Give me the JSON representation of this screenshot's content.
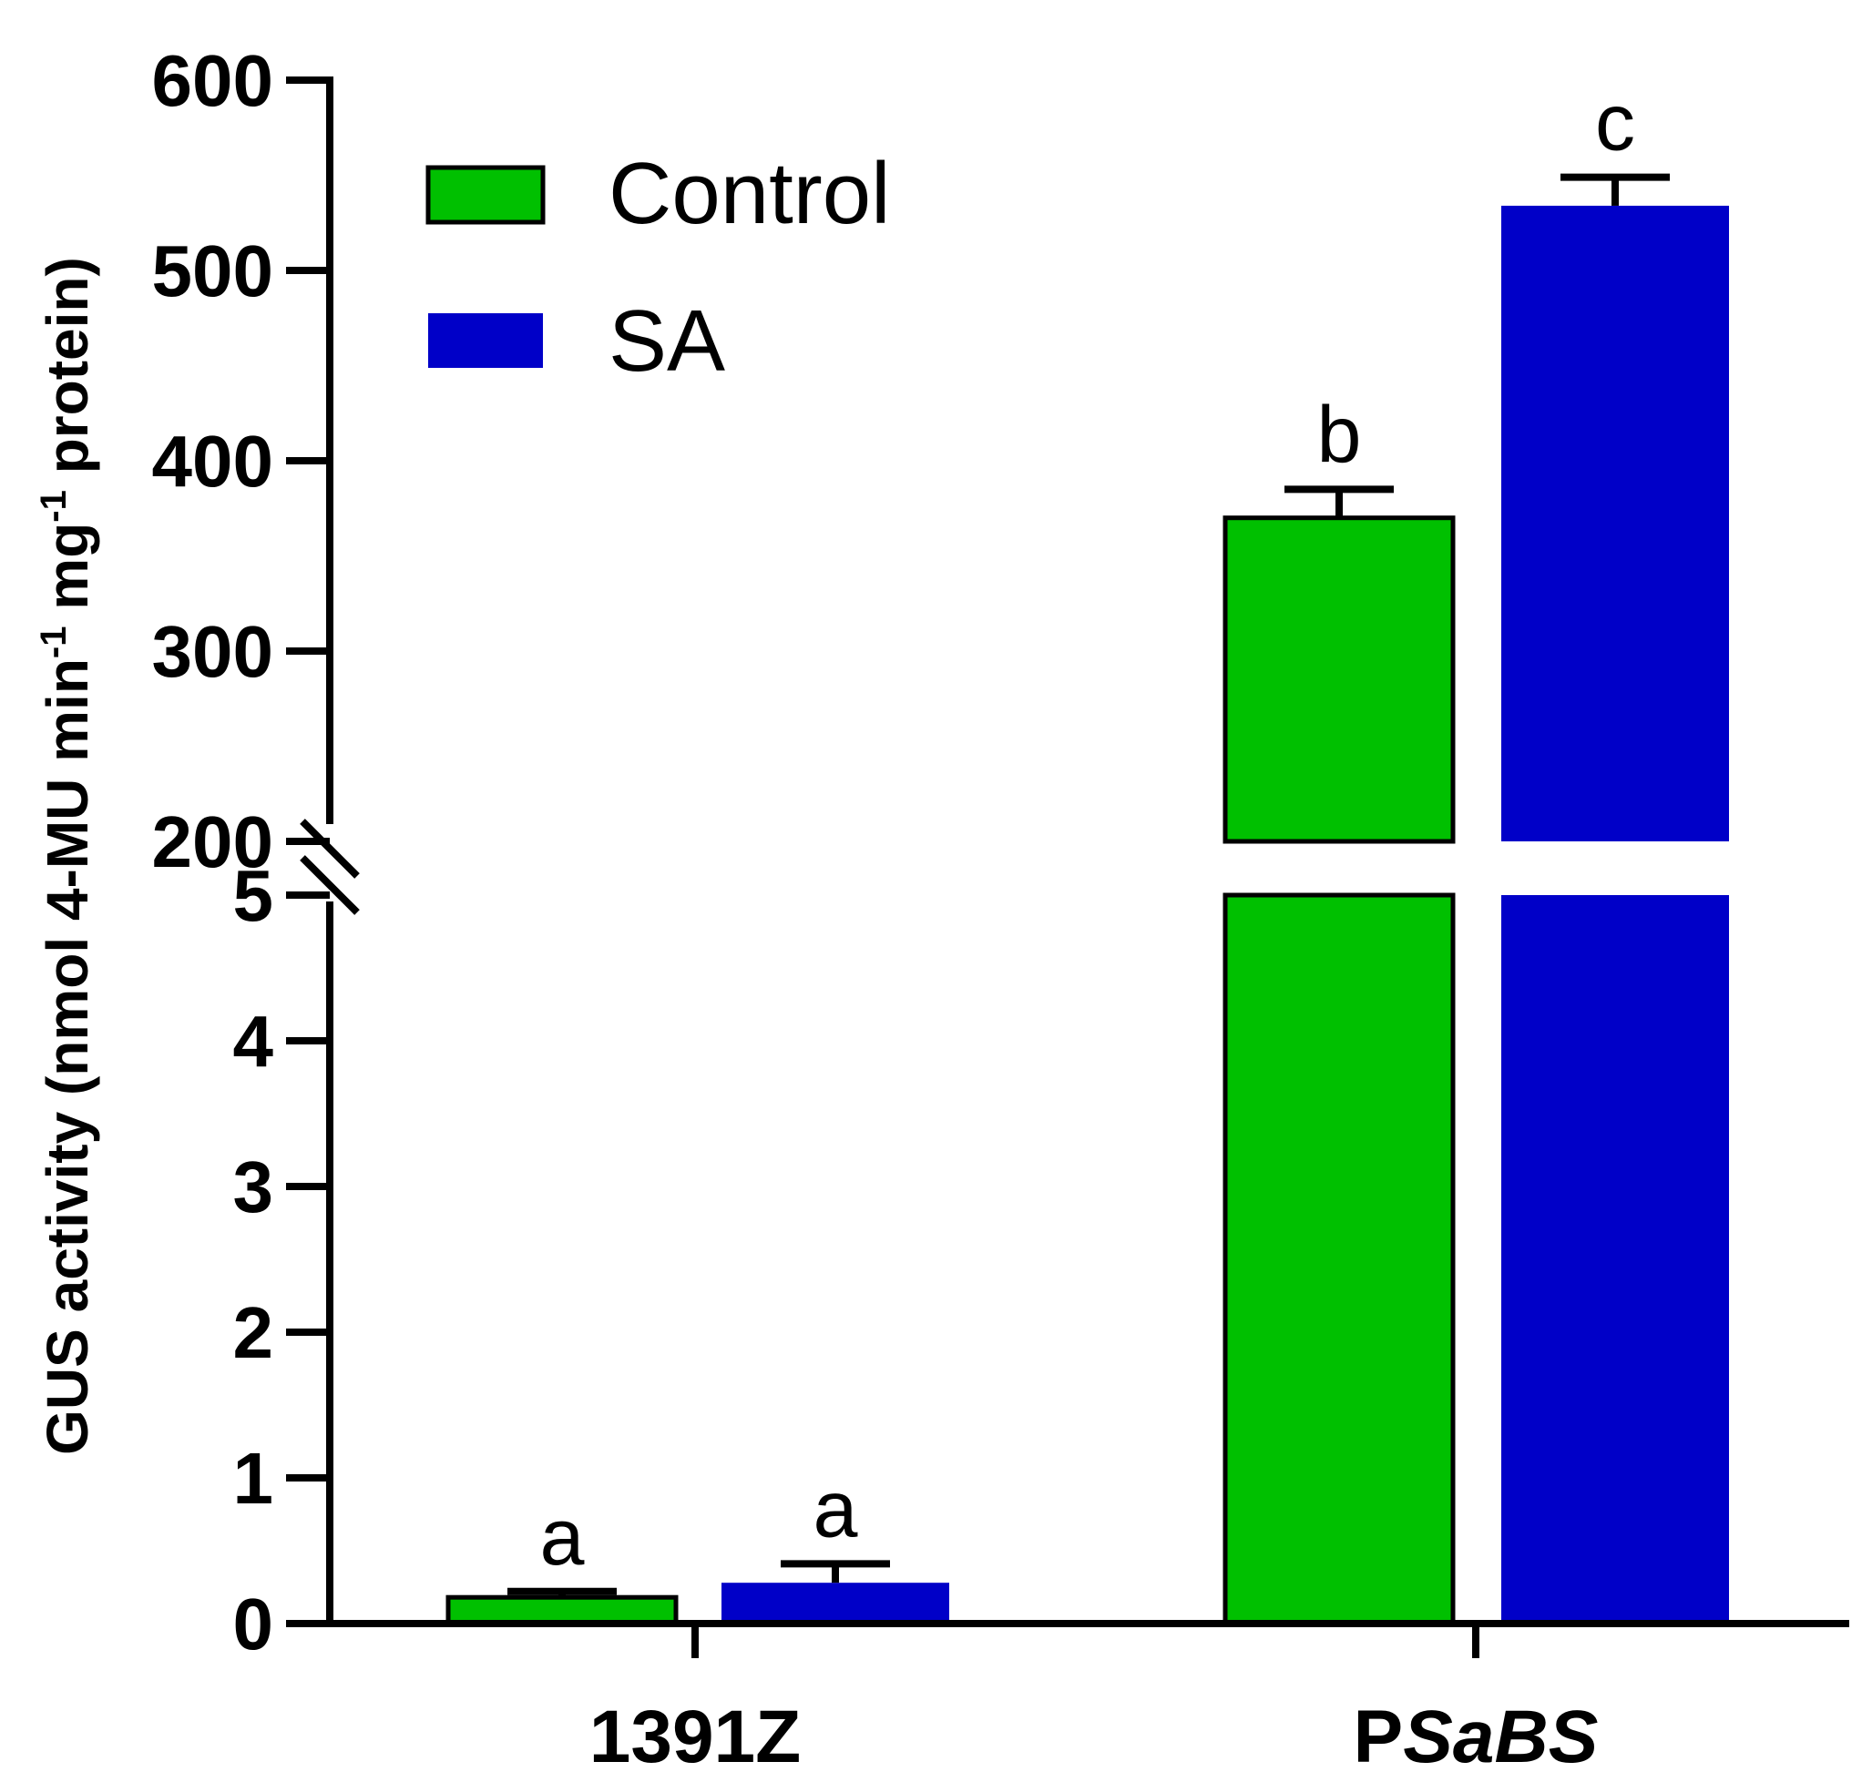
{
  "chart_data": {
    "type": "bar",
    "title": "",
    "xlabel": "",
    "ylabel": {
      "main": "GUS activity (nmol 4-MU min",
      "sup1": "-1",
      "mid": " mg",
      "sup2": "-1",
      "end": " protein)"
    },
    "axis_break": {
      "lower_range": [
        0,
        5
      ],
      "upper_range": [
        200,
        600
      ]
    },
    "lower_ticks": [
      "0",
      "1",
      "2",
      "3",
      "4",
      "5"
    ],
    "upper_ticks": [
      "200",
      "300",
      "400",
      "500",
      "600"
    ],
    "categories": [
      {
        "prefix": "1391Z",
        "italic": ""
      },
      {
        "prefix": "P",
        "italic": "SaBS"
      }
    ],
    "series": [
      {
        "name": "Control",
        "color": "#00c000",
        "values": [
          0.18,
          370
        ],
        "errors": [
          0.04,
          15
        ],
        "letters": [
          "a",
          "b"
        ]
      },
      {
        "name": "SA",
        "color": "#0000c8",
        "values": [
          0.28,
          534
        ],
        "errors": [
          0.13,
          15
        ],
        "letters": [
          "a",
          "c"
        ]
      }
    ],
    "legend": {
      "position": "top-left",
      "entries": [
        "Control",
        "SA"
      ]
    }
  }
}
